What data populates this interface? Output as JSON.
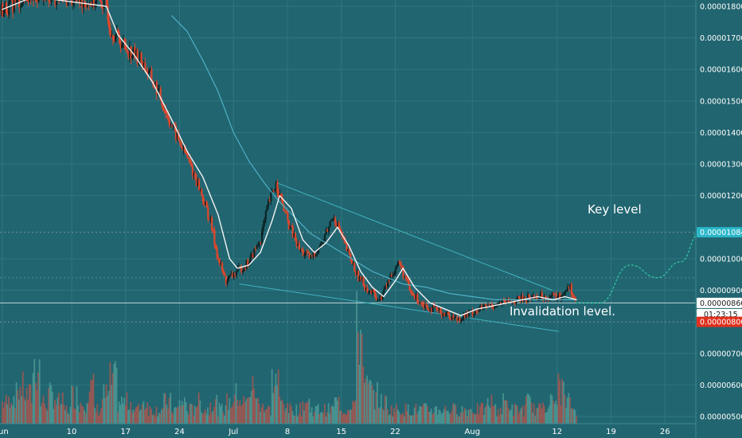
{
  "colors": {
    "background": "#216570",
    "grid": "#2e7681",
    "axis_text": "#ffffff",
    "candle_up": "#0b2426",
    "candle_down": "#e0462a",
    "fast_ma": "#f4f4f4",
    "slow_ma": "#4fb0c6",
    "volume_up": "#4b9a95",
    "volume_down": "#a55750",
    "trendline": "#3fb3bf",
    "projection": "#2fc3a2",
    "price_line": "#bfd4d6",
    "key_level_tag": "#2ab7c9",
    "invalidation_tag": "#e0301e",
    "current_tag": "#ffffff",
    "level_dash": "#9aa7a8"
  },
  "annotations": {
    "key_level": "Key level",
    "invalidation_level": "Invalidation level."
  },
  "chart_data": {
    "type": "candlestick",
    "x_axis": {
      "labels": [
        "Jun",
        "10",
        "17",
        "24",
        "Jul",
        "8",
        "15",
        "22",
        "Aug",
        "12",
        "19",
        "26"
      ],
      "label_day_index": [
        0,
        9,
        16,
        23,
        30,
        37,
        44,
        51,
        61,
        72,
        79,
        86
      ],
      "range_days": [
        -0.3,
        90
      ]
    },
    "y_axis": {
      "tick_labels": [
        "0.00001800",
        "0.00001700",
        "0.00001600",
        "0.00001500",
        "0.00001400",
        "0.00001300",
        "0.00001200",
        "0.00001000",
        "0.00000900",
        "0.00000700",
        "0.00000600",
        "0.00000500"
      ],
      "tick_values": [
        1.8e-05,
        1.7e-05,
        1.6e-05,
        1.5e-05,
        1.4e-05,
        1.3e-05,
        1.2e-05,
        1e-05,
        9e-06,
        7e-06,
        6e-06,
        5e-06
      ],
      "range": [
        4.32e-06,
        1.82e-05
      ]
    },
    "price_tags": {
      "key_level": {
        "label": "0.00001084",
        "value": 1.084e-05
      },
      "current": {
        "label": "0.00000860",
        "value": 8.6e-06,
        "countdown": "01:23:15"
      },
      "invalidation": {
        "label": "0.00000800",
        "value": 8e-06
      }
    },
    "close_path": [
      [
        0,
        1.79e-05
      ],
      [
        4,
        1.84e-05
      ],
      [
        13.5,
        1.81e-05
      ],
      [
        14,
        1.73e-05
      ],
      [
        16,
        1.67e-05
      ],
      [
        18,
        1.63e-05
      ],
      [
        20,
        1.54e-05
      ],
      [
        22,
        1.42e-05
      ],
      [
        24,
        1.32e-05
      ],
      [
        25.5,
        1.23e-05
      ],
      [
        27,
        1.12e-05
      ],
      [
        28,
        1e-05
      ],
      [
        29,
        9.3e-06
      ],
      [
        30.5,
        9.6e-06
      ],
      [
        32,
        9.9e-06
      ],
      [
        33.5,
        1.06e-05
      ],
      [
        34.5,
        1.17e-05
      ],
      [
        35.5,
        1.24e-05
      ],
      [
        37,
        1.12e-05
      ],
      [
        38.5,
        1.03e-05
      ],
      [
        40,
        1e-05
      ],
      [
        41.5,
        1.05e-05
      ],
      [
        43,
        1.14e-05
      ],
      [
        44.5,
        1.04e-05
      ],
      [
        46,
        9.5e-06
      ],
      [
        47.5,
        9e-06
      ],
      [
        49,
        8.7e-06
      ],
      [
        50.5,
        9.5e-06
      ],
      [
        51.5,
        9.9e-06
      ],
      [
        53,
        8.9e-06
      ],
      [
        55,
        8.5e-06
      ],
      [
        57,
        8.3e-06
      ],
      [
        59,
        8.1e-06
      ],
      [
        61,
        8.3e-06
      ],
      [
        63,
        8.5e-06
      ],
      [
        65,
        8.6e-06
      ],
      [
        67,
        8.7e-06
      ],
      [
        69,
        8.8e-06
      ],
      [
        71,
        8.8e-06
      ],
      [
        72.5,
        8.8e-06
      ],
      [
        73.5,
        9.2e-06
      ],
      [
        74,
        8.9e-06
      ],
      [
        74.5,
        8.6e-06
      ]
    ],
    "moving_averages": {
      "fast": [
        [
          0,
          1.79e-05
        ],
        [
          4,
          1.83e-05
        ],
        [
          13.5,
          1.8e-05
        ],
        [
          15,
          1.71e-05
        ],
        [
          17,
          1.65e-05
        ],
        [
          19.5,
          1.56e-05
        ],
        [
          22,
          1.44e-05
        ],
        [
          24,
          1.34e-05
        ],
        [
          26,
          1.26e-05
        ],
        [
          28,
          1.14e-05
        ],
        [
          29.5,
          1e-05
        ],
        [
          30.5,
          9.7e-06
        ],
        [
          32,
          9.8e-06
        ],
        [
          33.5,
          1.02e-05
        ],
        [
          35,
          1.12e-05
        ],
        [
          36,
          1.2e-05
        ],
        [
          37.5,
          1.16e-05
        ],
        [
          39,
          1.06e-05
        ],
        [
          40.5,
          1.02e-05
        ],
        [
          42,
          1.05e-05
        ],
        [
          43.5,
          1.1e-05
        ],
        [
          45,
          1.04e-05
        ],
        [
          46.5,
          9.6e-06
        ],
        [
          48,
          9.1e-06
        ],
        [
          49.5,
          8.8e-06
        ],
        [
          51,
          9.3e-06
        ],
        [
          52,
          9.7e-06
        ],
        [
          53.5,
          9.1e-06
        ],
        [
          55.5,
          8.6e-06
        ],
        [
          57.5,
          8.4e-06
        ],
        [
          59.5,
          8.2e-06
        ],
        [
          61.5,
          8.4e-06
        ],
        [
          63.5,
          8.5e-06
        ],
        [
          65.5,
          8.6e-06
        ],
        [
          67.5,
          8.7e-06
        ],
        [
          69.5,
          8.8e-06
        ],
        [
          71.5,
          8.7e-06
        ],
        [
          73,
          8.8e-06
        ],
        [
          74.5,
          8.7e-06
        ]
      ],
      "slow": [
        [
          22,
          1.77e-05
        ],
        [
          24,
          1.72e-05
        ],
        [
          26,
          1.63e-05
        ],
        [
          28,
          1.53e-05
        ],
        [
          30,
          1.4e-05
        ],
        [
          32,
          1.31e-05
        ],
        [
          34,
          1.24e-05
        ],
        [
          36,
          1.18e-05
        ],
        [
          38,
          1.13e-05
        ],
        [
          40,
          1.08e-05
        ],
        [
          42,
          1.05e-05
        ],
        [
          44,
          1.02e-05
        ],
        [
          46,
          9.9e-06
        ],
        [
          48,
          9.6e-06
        ],
        [
          50,
          9.4e-06
        ],
        [
          52,
          9.2e-06
        ],
        [
          55,
          9.1e-06
        ],
        [
          58,
          8.9e-06
        ],
        [
          61,
          8.8e-06
        ],
        [
          64,
          8.7e-06
        ],
        [
          67,
          8.7e-06
        ],
        [
          70,
          8.7e-06
        ],
        [
          73,
          8.7e-06
        ],
        [
          74.5,
          8.7e-06
        ]
      ]
    },
    "trendlines": {
      "upper": [
        [
          35.7,
          1.24e-05
        ],
        [
          71.4,
          9e-06
        ]
      ],
      "lower": [
        [
          30.8,
          9.2e-06
        ],
        [
          72.2,
          7.7e-06
        ]
      ]
    },
    "projection_path": [
      [
        74.5,
        8.6e-06
      ],
      [
        77.5,
        8.6e-06
      ],
      [
        81.5,
        9.8e-06
      ],
      [
        85,
        9.4e-06
      ],
      [
        88,
        9.9e-06
      ],
      [
        90.5,
        1.08e-05
      ]
    ],
    "volume_bars": [
      [
        0,
        3
      ],
      [
        1,
        4
      ],
      [
        2,
        5
      ],
      [
        3,
        4
      ],
      [
        4,
        8
      ],
      [
        5,
        3
      ],
      [
        6,
        4
      ],
      [
        7,
        3
      ],
      [
        8,
        2
      ],
      [
        9,
        4
      ],
      [
        10,
        3
      ],
      [
        11,
        5
      ],
      [
        12,
        2
      ],
      [
        13,
        4
      ],
      [
        14,
        6
      ],
      [
        15,
        3
      ],
      [
        16,
        3
      ],
      [
        17,
        2
      ],
      [
        18,
        3
      ],
      [
        19,
        2
      ],
      [
        20,
        2
      ],
      [
        21,
        3
      ],
      [
        22,
        2
      ],
      [
        23,
        3
      ],
      [
        24,
        2
      ],
      [
        25,
        3
      ],
      [
        26,
        2
      ],
      [
        27,
        3
      ],
      [
        28,
        2
      ],
      [
        29,
        3
      ],
      [
        30,
        4
      ],
      [
        31,
        3
      ],
      [
        32,
        5
      ],
      [
        33,
        3
      ],
      [
        34,
        2
      ],
      [
        35,
        6
      ],
      [
        36,
        3
      ],
      [
        37,
        2
      ],
      [
        38,
        2
      ],
      [
        39,
        3
      ],
      [
        40,
        2
      ],
      [
        41,
        2
      ],
      [
        42,
        2
      ],
      [
        43,
        3
      ],
      [
        44,
        2
      ],
      [
        45,
        3
      ],
      [
        46,
        13
      ],
      [
        47,
        5
      ],
      [
        48,
        4
      ],
      [
        49,
        3
      ],
      [
        50,
        2
      ],
      [
        51,
        2
      ],
      [
        52,
        2
      ],
      [
        53,
        2
      ],
      [
        54,
        2
      ],
      [
        55,
        2
      ],
      [
        56,
        2
      ],
      [
        57,
        2
      ],
      [
        58,
        2
      ],
      [
        59,
        2
      ],
      [
        60,
        2
      ],
      [
        61,
        2
      ],
      [
        62,
        2
      ],
      [
        63,
        3
      ],
      [
        64,
        2
      ],
      [
        65,
        3
      ],
      [
        66,
        2
      ],
      [
        67,
        2
      ],
      [
        68,
        3
      ],
      [
        69,
        2
      ],
      [
        70,
        3
      ],
      [
        71,
        3
      ],
      [
        72,
        5
      ],
      [
        73,
        3
      ],
      [
        74,
        2
      ]
    ]
  }
}
